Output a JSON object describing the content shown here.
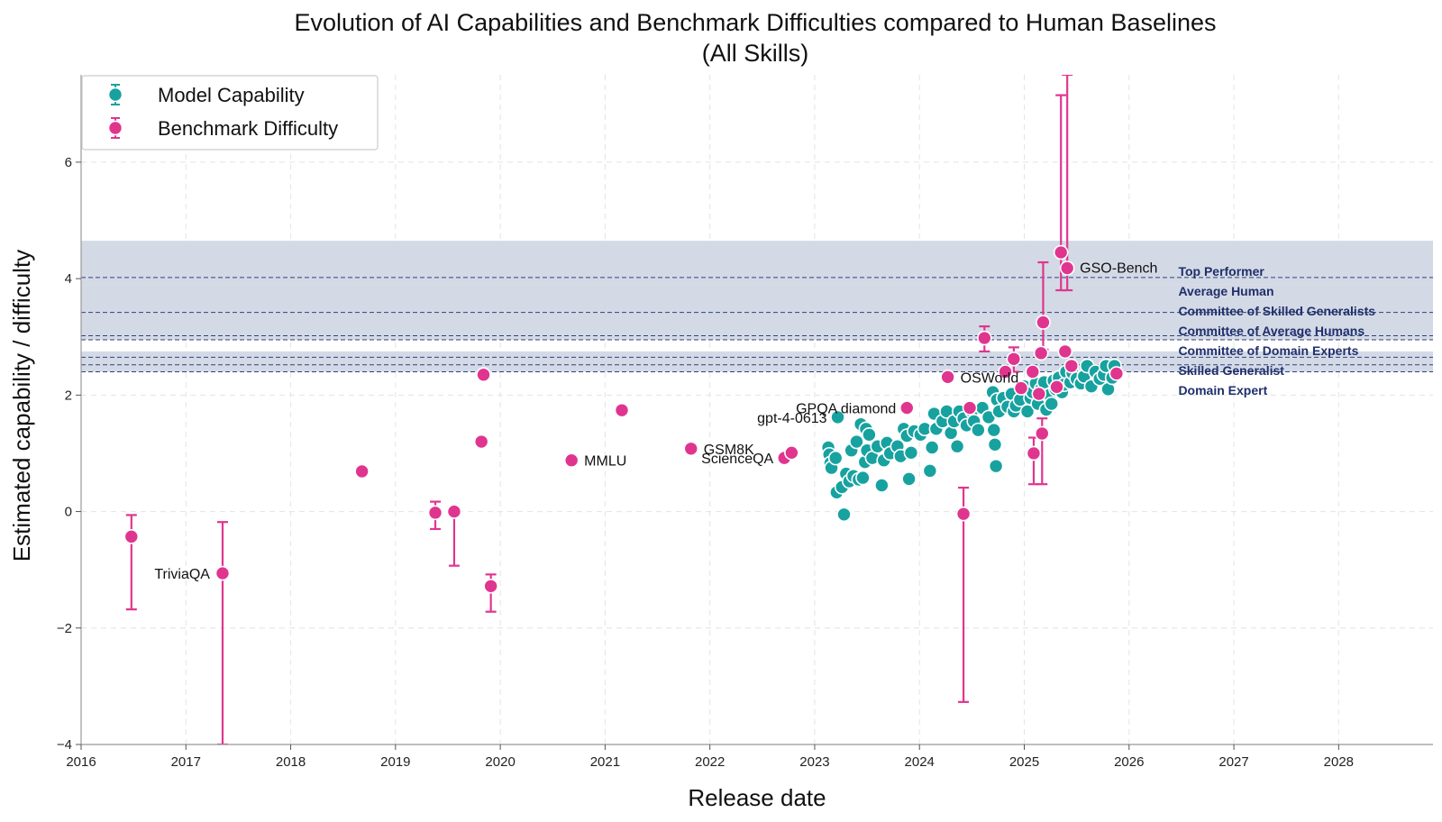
{
  "chart_data": {
    "type": "scatter",
    "title": [
      "Evolution of AI Capabilities and Benchmark Difficulties compared to Human Baselines",
      "(All Skills)"
    ],
    "xlabel": "Release date",
    "ylabel": "Estimated capability / difficulty",
    "xlim": [
      2016.0,
      2028.9
    ],
    "ylim": [
      -4.0,
      7.5
    ],
    "x_ticks": [
      2016,
      2017,
      2018,
      2019,
      2020,
      2021,
      2022,
      2023,
      2024,
      2025,
      2026,
      2027,
      2028
    ],
    "x_tick_labels": [
      "2016",
      "2017",
      "2018",
      "2019",
      "2020",
      "2021",
      "2022",
      "2023",
      "2024",
      "2025",
      "2026",
      "2027",
      "2028"
    ],
    "y_ticks": [
      -4,
      -2,
      0,
      2,
      4,
      6
    ],
    "y_tick_labels": [
      "−4",
      "−2",
      "0",
      "2",
      "4",
      "6"
    ],
    "grid": true,
    "legend": {
      "position": "top-left",
      "entries": [
        {
          "label": "Model Capability",
          "color": "#17a2a0"
        },
        {
          "label": "Benchmark Difficulty",
          "color": "#e0358f"
        }
      ]
    },
    "colors": {
      "model": "#17a2a0",
      "benchmark": "#e0358f",
      "band": "#cfd6e2",
      "human_line": "#2c4180",
      "human_text": "#1f2f6b"
    },
    "human_bands": [
      {
        "low": 3.9,
        "high": 4.65
      },
      {
        "low": 2.95,
        "high": 3.9
      },
      {
        "low": 2.4,
        "high": 2.75
      }
    ],
    "human_baselines": [
      {
        "label": "Top Performer",
        "value": 4.02
      },
      {
        "label": "Average Human",
        "value": 3.42
      },
      {
        "label": "Committee of Skilled Generalists",
        "value": 3.02
      },
      {
        "label": "Committee of Average Humans",
        "value": 2.95
      },
      {
        "label": "Committee of Domain Experts",
        "value": 2.65
      },
      {
        "label": "Skilled Generalist",
        "value": 2.52
      },
      {
        "label": "Domain Expert",
        "value": 2.4
      }
    ],
    "benchmarks": [
      {
        "x": 2016.48,
        "y": -0.43,
        "low": -1.68,
        "high": -0.06,
        "label": ""
      },
      {
        "x": 2017.35,
        "y": -1.06,
        "low": -4.0,
        "high": -0.18,
        "label": "TriviaQA"
      },
      {
        "x": 2018.68,
        "y": 0.69,
        "label": ""
      },
      {
        "x": 2019.38,
        "y": -0.02,
        "low": -0.3,
        "high": 0.17,
        "label": ""
      },
      {
        "x": 2019.56,
        "y": 0.0,
        "low": -0.93,
        "high": 0.0,
        "label": ""
      },
      {
        "x": 2019.82,
        "y": 1.2,
        "label": ""
      },
      {
        "x": 2019.84,
        "y": 2.35,
        "label": ""
      },
      {
        "x": 2019.91,
        "y": -1.28,
        "low": -1.72,
        "high": -1.08,
        "label": ""
      },
      {
        "x": 2020.68,
        "y": 0.88,
        "label": "MMLU"
      },
      {
        "x": 2021.16,
        "y": 1.74,
        "label": ""
      },
      {
        "x": 2021.82,
        "y": 1.08,
        "label": "GSM8K"
      },
      {
        "x": 2022.71,
        "y": 0.92,
        "label": "ScienceQA"
      },
      {
        "x": 2022.78,
        "y": 1.01,
        "label": ""
      },
      {
        "x": 2023.88,
        "y": 1.78,
        "label": "GPQA diamond"
      },
      {
        "x": 2024.27,
        "y": 2.31,
        "label": "OSWorld"
      },
      {
        "x": 2024.42,
        "y": -0.04,
        "low": -3.27,
        "high": 0.41,
        "label": ""
      },
      {
        "x": 2024.48,
        "y": 1.78,
        "label": ""
      },
      {
        "x": 2024.62,
        "y": 2.98,
        "low": 2.75,
        "high": 3.18,
        "label": ""
      },
      {
        "x": 2024.82,
        "y": 2.4,
        "label": ""
      },
      {
        "x": 2024.9,
        "y": 2.62,
        "low": 2.4,
        "high": 2.82,
        "label": ""
      },
      {
        "x": 2024.97,
        "y": 2.12,
        "label": ""
      },
      {
        "x": 2025.08,
        "y": 2.4,
        "label": ""
      },
      {
        "x": 2025.09,
        "y": 1.0,
        "low": 0.47,
        "high": 1.27,
        "label": ""
      },
      {
        "x": 2025.14,
        "y": 2.02,
        "label": ""
      },
      {
        "x": 2025.16,
        "y": 2.72,
        "label": ""
      },
      {
        "x": 2025.17,
        "y": 1.34,
        "low": 0.47,
        "high": 1.6,
        "label": ""
      },
      {
        "x": 2025.18,
        "y": 3.25,
        "low": 2.78,
        "high": 4.28,
        "label": ""
      },
      {
        "x": 2025.31,
        "y": 2.14,
        "label": ""
      },
      {
        "x": 2025.35,
        "y": 4.45,
        "low": 3.8,
        "high": 7.15,
        "label": ""
      },
      {
        "x": 2025.39,
        "y": 2.75,
        "label": ""
      },
      {
        "x": 2025.41,
        "y": 4.18,
        "low": 3.8,
        "high": 7.5,
        "label": "GSO-Bench"
      },
      {
        "x": 2025.45,
        "y": 2.5,
        "label": ""
      },
      {
        "x": 2025.88,
        "y": 2.37,
        "label": ""
      }
    ],
    "models": [
      {
        "x": 2023.13,
        "y": 1.1
      },
      {
        "x": 2023.14,
        "y": 0.98
      },
      {
        "x": 2023.15,
        "y": 0.83
      },
      {
        "x": 2023.16,
        "y": 0.75
      },
      {
        "x": 2023.2,
        "y": 0.92
      },
      {
        "x": 2023.21,
        "y": 0.33
      },
      {
        "x": 2023.22,
        "y": 1.62,
        "label": "gpt-4-0613"
      },
      {
        "x": 2023.26,
        "y": 0.42
      },
      {
        "x": 2023.28,
        "y": -0.05
      },
      {
        "x": 2023.3,
        "y": 0.65
      },
      {
        "x": 2023.33,
        "y": 0.52
      },
      {
        "x": 2023.35,
        "y": 1.05
      },
      {
        "x": 2023.37,
        "y": 0.61
      },
      {
        "x": 2023.4,
        "y": 1.2
      },
      {
        "x": 2023.42,
        "y": 0.55
      },
      {
        "x": 2023.44,
        "y": 1.5
      },
      {
        "x": 2023.46,
        "y": 0.58
      },
      {
        "x": 2023.48,
        "y": 0.85
      },
      {
        "x": 2023.49,
        "y": 1.42
      },
      {
        "x": 2023.5,
        "y": 1.05
      },
      {
        "x": 2023.52,
        "y": 1.32
      },
      {
        "x": 2023.55,
        "y": 0.92
      },
      {
        "x": 2023.6,
        "y": 1.12
      },
      {
        "x": 2023.64,
        "y": 0.45
      },
      {
        "x": 2023.66,
        "y": 0.88
      },
      {
        "x": 2023.69,
        "y": 1.18
      },
      {
        "x": 2023.72,
        "y": 1.0
      },
      {
        "x": 2023.79,
        "y": 1.12
      },
      {
        "x": 2023.82,
        "y": 0.95
      },
      {
        "x": 2023.85,
        "y": 1.42
      },
      {
        "x": 2023.88,
        "y": 1.3
      },
      {
        "x": 2023.9,
        "y": 0.56
      },
      {
        "x": 2023.92,
        "y": 1.01
      },
      {
        "x": 2023.95,
        "y": 1.38
      },
      {
        "x": 2024.01,
        "y": 1.32
      },
      {
        "x": 2024.05,
        "y": 1.42
      },
      {
        "x": 2024.1,
        "y": 0.7
      },
      {
        "x": 2024.12,
        "y": 1.1
      },
      {
        "x": 2024.14,
        "y": 1.68
      },
      {
        "x": 2024.16,
        "y": 1.42
      },
      {
        "x": 2024.22,
        "y": 1.55
      },
      {
        "x": 2024.26,
        "y": 1.72
      },
      {
        "x": 2024.3,
        "y": 1.35
      },
      {
        "x": 2024.33,
        "y": 1.55
      },
      {
        "x": 2024.36,
        "y": 1.12
      },
      {
        "x": 2024.38,
        "y": 1.72
      },
      {
        "x": 2024.42,
        "y": 1.6
      },
      {
        "x": 2024.45,
        "y": 1.48
      },
      {
        "x": 2024.5,
        "y": 1.72
      },
      {
        "x": 2024.52,
        "y": 1.55
      },
      {
        "x": 2024.56,
        "y": 1.4
      },
      {
        "x": 2024.6,
        "y": 1.78
      },
      {
        "x": 2024.66,
        "y": 1.62
      },
      {
        "x": 2024.7,
        "y": 2.05
      },
      {
        "x": 2024.71,
        "y": 1.4
      },
      {
        "x": 2024.72,
        "y": 1.15
      },
      {
        "x": 2024.73,
        "y": 0.78
      },
      {
        "x": 2024.74,
        "y": 1.92
      },
      {
        "x": 2024.76,
        "y": 1.72
      },
      {
        "x": 2024.8,
        "y": 1.95
      },
      {
        "x": 2024.84,
        "y": 1.8
      },
      {
        "x": 2024.88,
        "y": 2.02
      },
      {
        "x": 2024.9,
        "y": 1.72
      },
      {
        "x": 2024.92,
        "y": 1.82
      },
      {
        "x": 2024.96,
        "y": 1.92
      },
      {
        "x": 2025.0,
        "y": 2.15
      },
      {
        "x": 2025.03,
        "y": 1.72
      },
      {
        "x": 2025.06,
        "y": 1.95
      },
      {
        "x": 2025.08,
        "y": 2.05
      },
      {
        "x": 2025.11,
        "y": 2.2
      },
      {
        "x": 2025.13,
        "y": 1.85
      },
      {
        "x": 2025.16,
        "y": 2.1
      },
      {
        "x": 2025.19,
        "y": 2.22
      },
      {
        "x": 2025.21,
        "y": 1.75
      },
      {
        "x": 2025.24,
        "y": 2.0
      },
      {
        "x": 2025.26,
        "y": 1.85
      },
      {
        "x": 2025.28,
        "y": 2.25
      },
      {
        "x": 2025.3,
        "y": 2.1
      },
      {
        "x": 2025.33,
        "y": 2.3
      },
      {
        "x": 2025.36,
        "y": 2.05
      },
      {
        "x": 2025.38,
        "y": 2.18
      },
      {
        "x": 2025.4,
        "y": 2.4
      },
      {
        "x": 2025.44,
        "y": 2.22
      },
      {
        "x": 2025.46,
        "y": 2.38
      },
      {
        "x": 2025.5,
        "y": 2.28
      },
      {
        "x": 2025.54,
        "y": 2.2
      },
      {
        "x": 2025.57,
        "y": 2.32
      },
      {
        "x": 2025.6,
        "y": 2.5
      },
      {
        "x": 2025.64,
        "y": 2.15
      },
      {
        "x": 2025.68,
        "y": 2.4
      },
      {
        "x": 2025.72,
        "y": 2.28
      },
      {
        "x": 2025.76,
        "y": 2.35
      },
      {
        "x": 2025.78,
        "y": 2.5
      },
      {
        "x": 2025.8,
        "y": 2.1
      },
      {
        "x": 2025.84,
        "y": 2.3
      },
      {
        "x": 2025.86,
        "y": 2.5
      }
    ]
  }
}
